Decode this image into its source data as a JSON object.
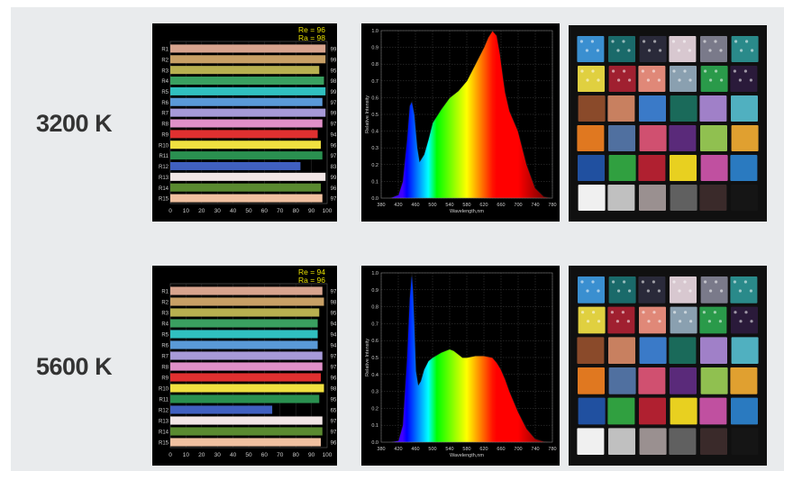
{
  "rows": [
    {
      "label": "3200 K"
    },
    {
      "label": "5600 K"
    }
  ],
  "chart_data": [
    {
      "type": "bar",
      "orientation": "horizontal",
      "annotations": [
        "Re = 96",
        "Ra = 98"
      ],
      "categories": [
        "R1",
        "R2",
        "R3",
        "R4",
        "R5",
        "R6",
        "R7",
        "R8",
        "R9",
        "R10",
        "R11",
        "R12",
        "R13",
        "R14",
        "R15"
      ],
      "values": [
        99,
        99,
        95,
        98,
        99,
        97,
        99,
        97,
        94,
        96,
        97,
        83,
        99,
        96,
        97
      ],
      "colors": [
        "#d8a48e",
        "#c8a066",
        "#b8b050",
        "#3aa060",
        "#30c0c0",
        "#5a9ad8",
        "#a79ad8",
        "#e090c8",
        "#e03030",
        "#f0e040",
        "#2a9050",
        "#4060c0",
        "#f2e6e6",
        "#5a8a30",
        "#f0c0a0"
      ],
      "xticks": [
        0,
        10,
        20,
        30,
        40,
        50,
        60,
        70,
        80,
        90,
        100
      ],
      "xlim": [
        0,
        100
      ]
    },
    {
      "type": "area",
      "ylabel": "Relative Intensity",
      "xlabel": "Wavelength,nm",
      "xlim": [
        380,
        780
      ],
      "ylim": [
        0,
        1.0
      ],
      "xticks": [
        380,
        420,
        460,
        500,
        540,
        580,
        620,
        660,
        700,
        740,
        780
      ],
      "yticks": [
        "0.0",
        "0.1",
        "0.2",
        "0.3",
        "0.4",
        "0.5",
        "0.6",
        "0.7",
        "0.8",
        "0.9",
        "1.0"
      ],
      "x": [
        380,
        400,
        420,
        430,
        440,
        446,
        452,
        458,
        465,
        470,
        480,
        490,
        500,
        520,
        540,
        560,
        580,
        600,
        620,
        630,
        640,
        650,
        658,
        665,
        670,
        680,
        700,
        720,
        740,
        760,
        780
      ],
      "values": [
        0,
        0,
        0.02,
        0.1,
        0.35,
        0.55,
        0.58,
        0.5,
        0.3,
        0.22,
        0.26,
        0.35,
        0.45,
        0.53,
        0.6,
        0.64,
        0.7,
        0.8,
        0.9,
        0.96,
        1.0,
        0.97,
        0.86,
        0.72,
        0.63,
        0.52,
        0.4,
        0.2,
        0.06,
        0.01,
        0
      ]
    },
    {
      "type": "bar",
      "orientation": "horizontal",
      "annotations": [
        "Re = 94",
        "Ra = 96"
      ],
      "categories": [
        "R1",
        "R2",
        "R3",
        "R4",
        "R5",
        "R6",
        "R7",
        "R8",
        "R9",
        "R10",
        "R11",
        "R12",
        "R13",
        "R14",
        "R15"
      ],
      "values": [
        97,
        98,
        95,
        94,
        94,
        94,
        97,
        97,
        96,
        98,
        95,
        65,
        97,
        97,
        96
      ],
      "colors": [
        "#d8a48e",
        "#c8a066",
        "#b8b050",
        "#3aa060",
        "#30c0c0",
        "#5a9ad8",
        "#a79ad8",
        "#e090c8",
        "#e03030",
        "#f0e040",
        "#2a9050",
        "#4060c0",
        "#f2e6e6",
        "#5a8a30",
        "#f0c0a0"
      ],
      "xticks": [
        0,
        10,
        20,
        30,
        40,
        50,
        60,
        70,
        80,
        90,
        100
      ],
      "xlim": [
        0,
        100
      ]
    },
    {
      "type": "area",
      "ylabel": "Relative Intensity",
      "xlabel": "Wavelength,nm",
      "xlim": [
        380,
        780
      ],
      "ylim": [
        0,
        1.0
      ],
      "xticks": [
        380,
        420,
        460,
        500,
        540,
        580,
        620,
        660,
        700,
        740,
        780
      ],
      "yticks": [
        "0.0",
        "0.1",
        "0.2",
        "0.3",
        "0.4",
        "0.5",
        "0.6",
        "0.7",
        "0.8",
        "0.9",
        "1.0"
      ],
      "x": [
        380,
        400,
        420,
        430,
        440,
        446,
        450,
        452,
        455,
        458,
        462,
        467,
        472,
        480,
        490,
        500,
        520,
        540,
        550,
        560,
        570,
        580,
        600,
        620,
        640,
        650,
        660,
        670,
        680,
        700,
        720,
        740,
        760,
        780
      ],
      "values": [
        0,
        0,
        0.01,
        0.1,
        0.5,
        0.85,
        0.97,
        1.0,
        0.9,
        0.7,
        0.42,
        0.34,
        0.36,
        0.43,
        0.48,
        0.5,
        0.53,
        0.55,
        0.54,
        0.52,
        0.5,
        0.5,
        0.51,
        0.51,
        0.5,
        0.47,
        0.43,
        0.37,
        0.3,
        0.18,
        0.08,
        0.02,
        0.005,
        0
      ]
    }
  ],
  "swatches": {
    "rows": [
      {
        "colors": [
          "#3a8fd0",
          "#1a6a6a",
          "#2a2a3a",
          "#d8c8d0",
          "#7a7a8a",
          "#2a8a8a"
        ]
      },
      {
        "colors": [
          "#e0d040",
          "#a02030",
          "#e08878",
          "#8aa0b0",
          "#2a9a4a",
          "#2a1a3a"
        ]
      },
      {
        "colors": [
          "#8a4a2a",
          "#c88060",
          "#3a7ac8",
          "#1a6a5a",
          "#a080c8",
          "#50b0c0"
        ]
      },
      {
        "colors": [
          "#e07820",
          "#5070a0",
          "#d05070",
          "#5a2a7a",
          "#90c050",
          "#e0a030"
        ]
      },
      {
        "colors": [
          "#2050a0",
          "#30a040",
          "#b02030",
          "#e8d020",
          "#c050a0",
          "#2a7ac0"
        ]
      },
      {
        "colors": [
          "#f0f0f0",
          "#c0c0c0",
          "#9a9090",
          "#606060",
          "#3a2a2a",
          "#151515"
        ]
      }
    ]
  }
}
